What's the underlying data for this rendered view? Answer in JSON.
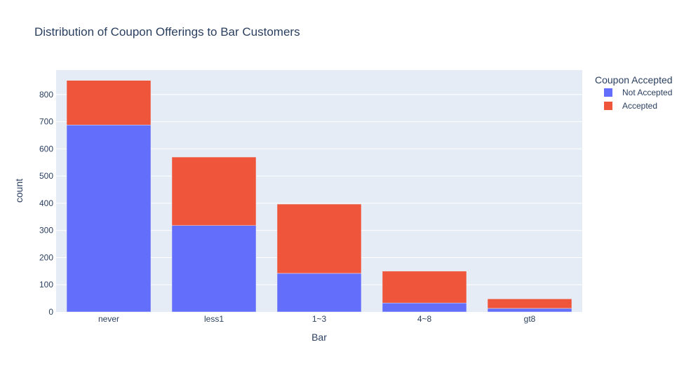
{
  "chart_data": {
    "type": "bar",
    "stacked": true,
    "title": "Distribution of Coupon Offerings to Bar Customers",
    "xlabel": "Bar",
    "ylabel": "count",
    "categories": [
      "never",
      "less1",
      "1~3",
      "4~8",
      "gt8"
    ],
    "ylim": [
      0,
      890
    ],
    "yticks": [
      0,
      100,
      200,
      300,
      400,
      500,
      600,
      700,
      800
    ],
    "grid": true,
    "legend": {
      "title": "Coupon Accepted",
      "placement": "right-top"
    },
    "series": [
      {
        "name": "Not Accepted",
        "color": "#636efa",
        "values": [
          688,
          318,
          142,
          33,
          13
        ]
      },
      {
        "name": "Accepted",
        "color": "#ef553b",
        "values": [
          164,
          252,
          255,
          117,
          35
        ]
      }
    ]
  }
}
